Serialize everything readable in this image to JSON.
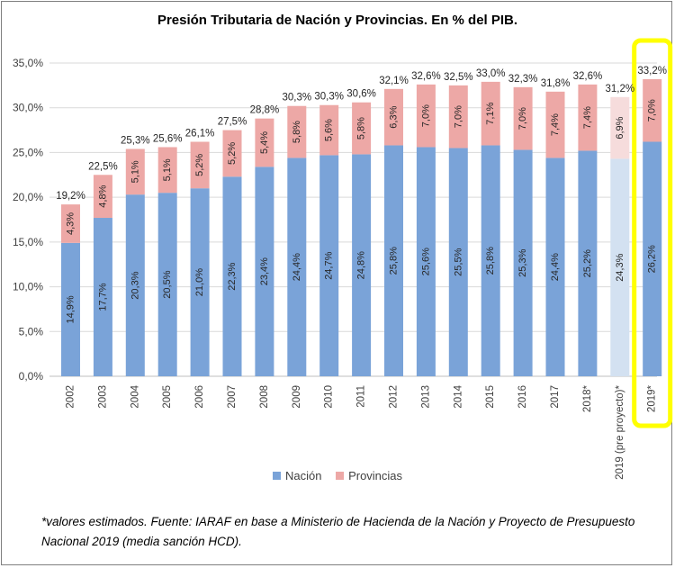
{
  "chart_data": {
    "type": "bar",
    "stacked": true,
    "title": "Presión Tributaria de Nación y Provincias. En % del PIB.",
    "categories": [
      "2002",
      "2003",
      "2004",
      "2005",
      "2006",
      "2007",
      "2008",
      "2009",
      "2010",
      "2011",
      "2012",
      "2013",
      "2014",
      "2015",
      "2016",
      "2017",
      "2018*",
      "2019 (pre proyecto)*",
      "2019*"
    ],
    "series": [
      {
        "name": "Nación",
        "color": "#7aa3d8",
        "values": [
          14.9,
          17.7,
          20.3,
          20.5,
          21.0,
          22.3,
          23.4,
          24.4,
          24.7,
          24.8,
          25.8,
          25.6,
          25.5,
          25.8,
          25.3,
          24.4,
          25.2,
          24.3,
          26.2
        ],
        "labels": [
          "14,9%",
          "17,7%",
          "20,3%",
          "20,5%",
          "21,0%",
          "22,3%",
          "23,4%",
          "24,4%",
          "24,7%",
          "24,8%",
          "25,8%",
          "25,6%",
          "25,5%",
          "25,8%",
          "25,3%",
          "24,4%",
          "25,2%",
          "24,3%",
          "26,2%"
        ]
      },
      {
        "name": "Provincias",
        "color": "#eda8a6",
        "values": [
          4.3,
          4.8,
          5.1,
          5.1,
          5.2,
          5.2,
          5.4,
          5.8,
          5.6,
          5.8,
          6.3,
          7.0,
          7.0,
          7.1,
          7.0,
          7.4,
          7.4,
          6.9,
          7.0
        ],
        "labels": [
          "4,3%",
          "4,8%",
          "5,1%",
          "5,1%",
          "5,2%",
          "5,2%",
          "5,4%",
          "5,8%",
          "5,6%",
          "5,8%",
          "6,3%",
          "7,0%",
          "7,0%",
          "7,1%",
          "7,0%",
          "7,4%",
          "7,4%",
          "6,9%",
          "7,0%"
        ]
      }
    ],
    "totals": [
      "19,2%",
      "22,5%",
      "25,3%",
      "25,6%",
      "26,1%",
      "27,5%",
      "28,8%",
      "30,3%",
      "30,3%",
      "30,6%",
      "32,1%",
      "32,6%",
      "32,5%",
      "33,0%",
      "32,3%",
      "31,8%",
      "32,6%",
      "31,2%",
      "33,2%"
    ],
    "faded_category_index": 17,
    "faded_colors": {
      "Nación": "#d3e1f1",
      "Provincias": "#f6dcdc"
    },
    "highlighted_category_index": 18,
    "highlight_color": "#ffff00",
    "ylim": [
      0,
      35
    ],
    "yticks": [
      0,
      5,
      10,
      15,
      20,
      25,
      30,
      35
    ],
    "ytick_labels": [
      "0,0%",
      "5,0%",
      "10,0%",
      "15,0%",
      "20,0%",
      "25,0%",
      "30,0%",
      "35,0%"
    ],
    "grid": true,
    "legend_position": "bottom"
  },
  "footnote": "*valores estimados. Fuente: IARAF en base a Ministerio de Hacienda de la Nación y Proyecto de Presupuesto Nacional 2019 (media sanción HCD)."
}
